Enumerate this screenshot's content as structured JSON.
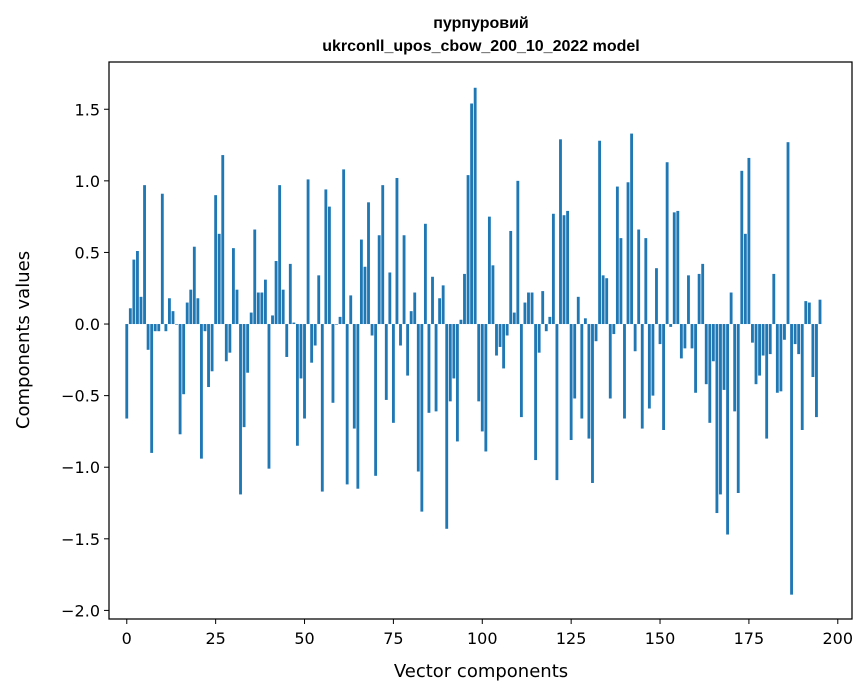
{
  "chart_data": {
    "type": "bar",
    "title": "пурпуровий",
    "subtitle": "ukrconll_upos_cbow_200_10_2022 model",
    "xlabel": "Vector components",
    "ylabel": "Components values",
    "xlim": [
      -5,
      204
    ],
    "ylim": [
      -2.06,
      1.83
    ],
    "xticks": [
      0,
      25,
      50,
      75,
      100,
      125,
      150,
      175,
      200
    ],
    "xtick_labels": [
      "0",
      "25",
      "50",
      "75",
      "100",
      "125",
      "150",
      "175",
      "200"
    ],
    "yticks": [
      -2.0,
      -1.5,
      -1.0,
      -0.5,
      0.0,
      0.5,
      1.0,
      1.5
    ],
    "ytick_labels": [
      "−2.0",
      "−1.5",
      "−1.0",
      "−0.5",
      "0.0",
      "0.5",
      "1.0",
      "1.5"
    ],
    "bar_color": "#1f77b4",
    "grid": false,
    "values": [
      -0.66,
      0.11,
      0.45,
      0.51,
      0.19,
      0.97,
      -0.18,
      -0.9,
      -0.05,
      -0.05,
      0.91,
      -0.05,
      0.18,
      0.09,
      0.0,
      -0.77,
      -0.49,
      0.15,
      0.24,
      0.54,
      0.18,
      -0.94,
      -0.05,
      -0.44,
      -0.33,
      0.9,
      0.63,
      1.18,
      -0.26,
      -0.2,
      0.53,
      0.24,
      -1.19,
      -0.72,
      -0.34,
      0.08,
      0.66,
      0.22,
      0.22,
      0.31,
      -1.01,
      0.06,
      0.44,
      0.97,
      0.24,
      -0.23,
      0.42,
      0.01,
      -0.85,
      -0.38,
      -0.66,
      1.01,
      -0.27,
      -0.15,
      0.34,
      -1.17,
      0.94,
      0.82,
      -0.55,
      0.0,
      0.05,
      1.08,
      -1.12,
      0.2,
      -0.73,
      -1.15,
      0.59,
      0.4,
      0.85,
      -0.08,
      -1.06,
      0.62,
      0.97,
      -0.53,
      0.36,
      -0.69,
      1.02,
      -0.15,
      0.62,
      -0.36,
      0.09,
      0.22,
      -1.03,
      -1.31,
      0.7,
      -0.62,
      0.33,
      -0.61,
      0.18,
      0.27,
      -1.43,
      -0.54,
      -0.38,
      -0.82,
      0.03,
      0.35,
      1.04,
      1.54,
      1.65,
      -0.54,
      -0.75,
      -0.89,
      0.75,
      0.41,
      -0.22,
      -0.16,
      -0.31,
      -0.08,
      0.65,
      0.08,
      1.0,
      -0.65,
      0.15,
      0.22,
      0.22,
      -0.95,
      -0.2,
      0.23,
      -0.05,
      0.05,
      0.77,
      -1.09,
      1.29,
      0.76,
      0.79,
      -0.81,
      -0.52,
      0.19,
      -0.66,
      0.04,
      -0.8,
      -1.11,
      -0.12,
      1.28,
      0.34,
      0.32,
      -0.52,
      -0.07,
      0.96,
      0.6,
      -0.66,
      0.99,
      1.33,
      -0.19,
      0.66,
      -0.73,
      0.6,
      -0.59,
      -0.5,
      0.39,
      -0.14,
      -0.74,
      1.13,
      -0.02,
      0.78,
      0.79,
      -0.24,
      -0.17,
      0.34,
      -0.17,
      -0.48,
      0.35,
      0.42,
      -0.42,
      -0.69,
      -0.26,
      -1.32,
      -1.19,
      -0.46,
      -1.47,
      0.22,
      -0.61,
      -1.18,
      1.07,
      0.63,
      1.16,
      -0.13,
      -0.42,
      -0.36,
      -0.22,
      -0.8,
      -0.21,
      0.35,
      -0.48,
      -0.47,
      -0.11,
      1.27,
      -1.89,
      -0.14,
      -0.21,
      -0.74,
      0.16,
      0.15,
      -0.37,
      -0.65,
      0.17
    ]
  }
}
